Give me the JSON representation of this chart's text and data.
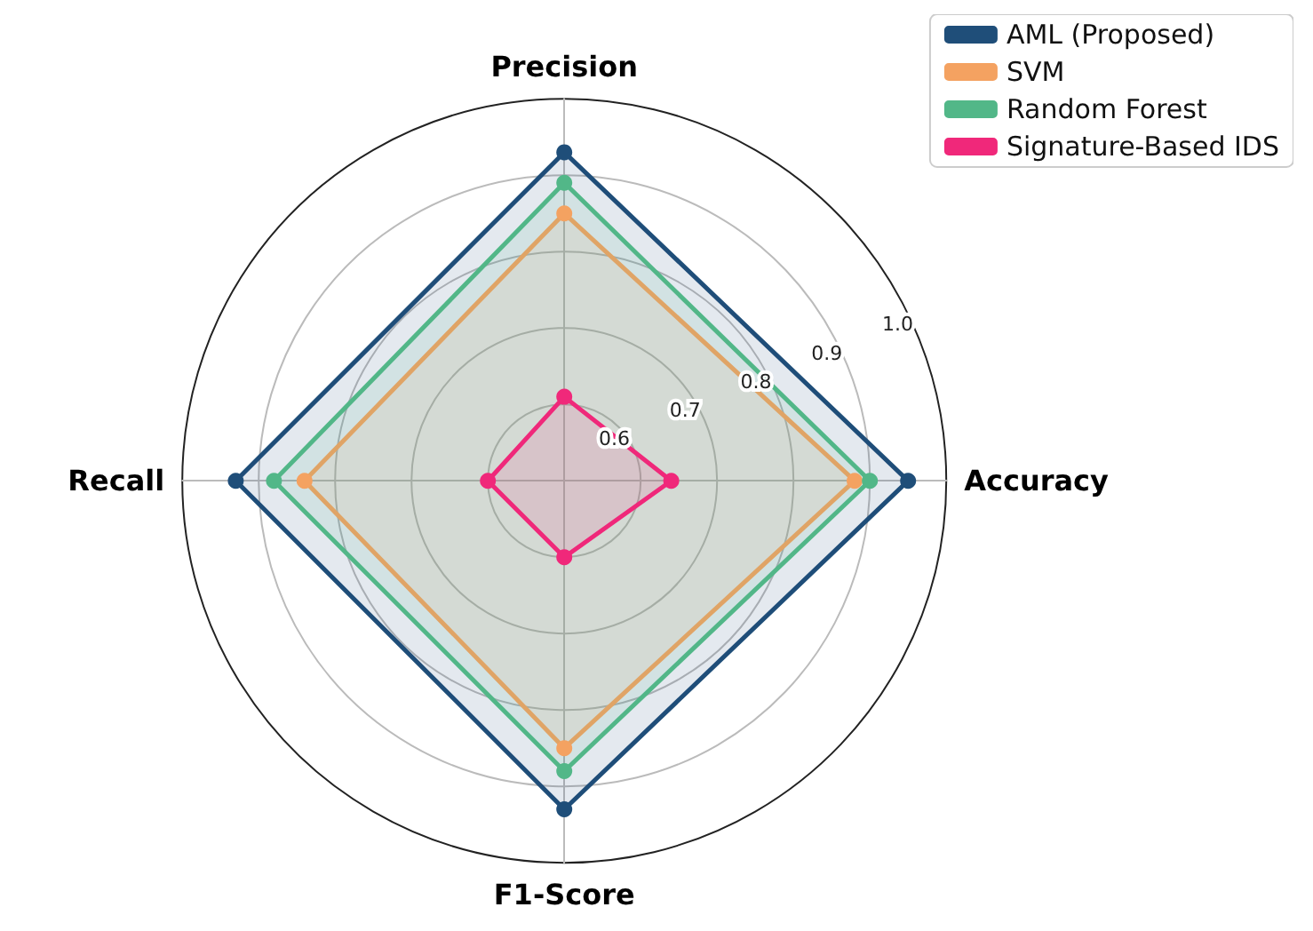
{
  "chart_data": {
    "type": "radar",
    "categories": [
      "Precision",
      "Accuracy",
      "F1-Score",
      "Recall"
    ],
    "series": [
      {
        "name": "AML (Proposed)",
        "color": "#1f4e79",
        "values": [
          0.93,
          0.95,
          0.93,
          0.93
        ]
      },
      {
        "name": "SVM",
        "color": "#f4a261",
        "values": [
          0.85,
          0.88,
          0.85,
          0.84
        ]
      },
      {
        "name": "Random Forest",
        "color": "#52b788",
        "values": [
          0.89,
          0.9,
          0.88,
          0.88
        ]
      },
      {
        "name": "Signature-Based IDS",
        "color": "#f0287a",
        "values": [
          0.61,
          0.64,
          0.6,
          0.6
        ]
      }
    ],
    "ylim": [
      0.5,
      1.0
    ],
    "yticks": [
      0.6,
      0.7,
      0.8,
      0.9,
      {
        "value": 1.0,
        "label": "1.0"
      }
    ],
    "grid": true,
    "legend": "top right",
    "marker": "circle"
  }
}
